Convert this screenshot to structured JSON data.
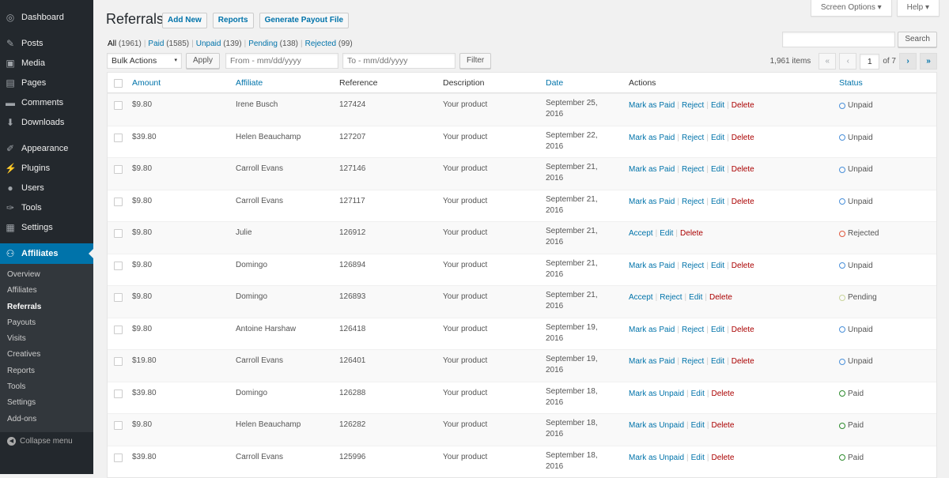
{
  "sidebar": {
    "items": [
      {
        "label": "Dashboard",
        "icon": "dashboard-icon",
        "g": "◎"
      },
      {
        "label": "Posts",
        "icon": "pin-icon",
        "g": "✎"
      },
      {
        "label": "Media",
        "icon": "media-icon",
        "g": "▣"
      },
      {
        "label": "Pages",
        "icon": "pages-icon",
        "g": "▤"
      },
      {
        "label": "Comments",
        "icon": "comments-icon",
        "g": "▬"
      },
      {
        "label": "Downloads",
        "icon": "downloads-icon",
        "g": "⬇"
      },
      {
        "label": "Appearance",
        "icon": "brush-icon",
        "g": "✐"
      },
      {
        "label": "Plugins",
        "icon": "plugin-icon",
        "g": "⚡"
      },
      {
        "label": "Users",
        "icon": "users-icon",
        "g": "●"
      },
      {
        "label": "Tools",
        "icon": "wrench-icon",
        "g": "✑"
      },
      {
        "label": "Settings",
        "icon": "settings-icon",
        "g": "▦"
      }
    ],
    "active": {
      "label": "Affiliates",
      "icon": "affiliates-icon",
      "g": "⚇"
    },
    "submenu": [
      "Overview",
      "Affiliates",
      "Referrals",
      "Payouts",
      "Visits",
      "Creatives",
      "Reports",
      "Tools",
      "Settings",
      "Add-ons"
    ],
    "current": "Referrals",
    "collapse": "Collapse menu"
  },
  "header": {
    "title": "Referrals",
    "buttons": [
      "Add New",
      "Reports",
      "Generate Payout File"
    ],
    "screen_options": "Screen Options ▾",
    "help": "Help ▾"
  },
  "filters": [
    {
      "label": "All",
      "count": "(1961)"
    },
    {
      "label": "Paid",
      "count": "(1585)"
    },
    {
      "label": "Unpaid",
      "count": "(139)"
    },
    {
      "label": "Pending",
      "count": "(138)"
    },
    {
      "label": "Rejected",
      "count": "(99)"
    }
  ],
  "toolbar": {
    "bulk": "Bulk Actions",
    "apply": "Apply",
    "from_placeholder": "From - mm/dd/yyyy",
    "to_placeholder": "To - mm/dd/yyyy",
    "filter": "Filter",
    "search": "Search",
    "items": "1,961 items",
    "page": "1",
    "of": "of 7"
  },
  "columns": [
    "Amount",
    "Affiliate",
    "Reference",
    "Description",
    "Date",
    "Actions",
    "Status"
  ],
  "status_colors": {
    "Unpaid": "#4a90d9",
    "Rejected": "#e0593f",
    "Pending": "#c9d49a",
    "Paid": "#2e8b2e"
  },
  "rows": [
    {
      "amount": "$9.80",
      "affiliate": "Irene Busch",
      "ref": "127424",
      "desc": "Your product",
      "date": "September 25, 2016",
      "actions": [
        "Mark as Paid",
        "Reject",
        "Edit",
        "Delete"
      ],
      "status": "Unpaid"
    },
    {
      "amount": "$39.80",
      "affiliate": "Helen Beauchamp",
      "ref": "127207",
      "desc": "Your product",
      "date": "September 22, 2016",
      "actions": [
        "Mark as Paid",
        "Reject",
        "Edit",
        "Delete"
      ],
      "status": "Unpaid"
    },
    {
      "amount": "$9.80",
      "affiliate": "Carroll Evans",
      "ref": "127146",
      "desc": "Your product",
      "date": "September 21, 2016",
      "actions": [
        "Mark as Paid",
        "Reject",
        "Edit",
        "Delete"
      ],
      "status": "Unpaid"
    },
    {
      "amount": "$9.80",
      "affiliate": "Carroll Evans",
      "ref": "127117",
      "desc": "Your product",
      "date": "September 21, 2016",
      "actions": [
        "Mark as Paid",
        "Reject",
        "Edit",
        "Delete"
      ],
      "status": "Unpaid"
    },
    {
      "amount": "$9.80",
      "affiliate": "Julie",
      "ref": "126912",
      "desc": "Your product",
      "date": "September 21, 2016",
      "actions": [
        "Accept",
        "Edit",
        "Delete"
      ],
      "status": "Rejected"
    },
    {
      "amount": "$9.80",
      "affiliate": "Domingo",
      "ref": "126894",
      "desc": "Your product",
      "date": "September 21, 2016",
      "actions": [
        "Mark as Paid",
        "Reject",
        "Edit",
        "Delete"
      ],
      "status": "Unpaid"
    },
    {
      "amount": "$9.80",
      "affiliate": "Domingo",
      "ref": "126893",
      "desc": "Your product",
      "date": "September 21, 2016",
      "actions": [
        "Accept",
        "Reject",
        "Edit",
        "Delete"
      ],
      "status": "Pending"
    },
    {
      "amount": "$9.80",
      "affiliate": "Antoine Harshaw",
      "ref": "126418",
      "desc": "Your product",
      "date": "September 19, 2016",
      "actions": [
        "Mark as Paid",
        "Reject",
        "Edit",
        "Delete"
      ],
      "status": "Unpaid"
    },
    {
      "amount": "$19.80",
      "affiliate": "Carroll Evans",
      "ref": "126401",
      "desc": "Your product",
      "date": "September 19, 2016",
      "actions": [
        "Mark as Paid",
        "Reject",
        "Edit",
        "Delete"
      ],
      "status": "Unpaid"
    },
    {
      "amount": "$39.80",
      "affiliate": "Domingo",
      "ref": "126288",
      "desc": "Your product",
      "date": "September 18, 2016",
      "actions": [
        "Mark as Unpaid",
        "Edit",
        "Delete"
      ],
      "status": "Paid"
    },
    {
      "amount": "$9.80",
      "affiliate": "Helen Beauchamp",
      "ref": "126282",
      "desc": "Your product",
      "date": "September 18, 2016",
      "actions": [
        "Mark as Unpaid",
        "Edit",
        "Delete"
      ],
      "status": "Paid"
    },
    {
      "amount": "$39.80",
      "affiliate": "Carroll Evans",
      "ref": "125996",
      "desc": "Your product",
      "date": "September 18, 2016",
      "actions": [
        "Mark as Unpaid",
        "Edit",
        "Delete"
      ],
      "status": "Paid"
    }
  ]
}
